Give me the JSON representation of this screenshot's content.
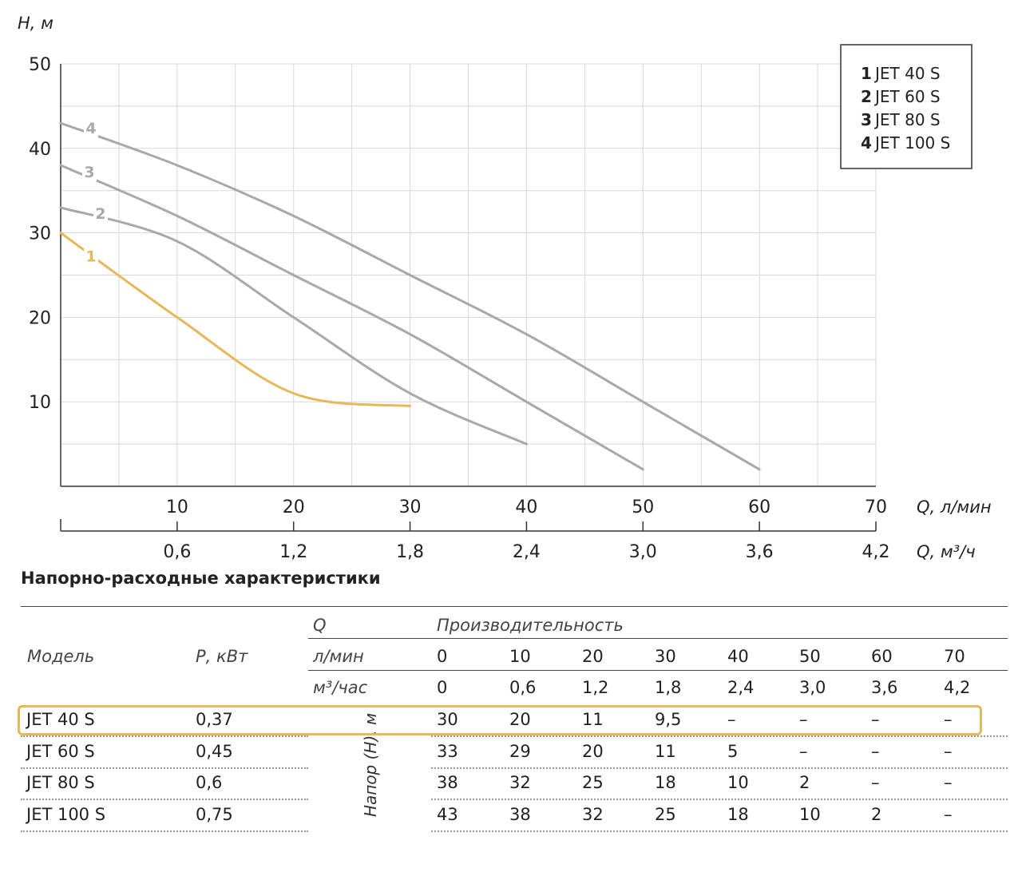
{
  "chart_data": {
    "type": "line",
    "ylabel": "H, м",
    "xlabel": "Q, л/мин",
    "x2label": "Q, м³/ч",
    "xlim": [
      0,
      70
    ],
    "ylim": [
      0,
      50
    ],
    "y_ticks": [
      10,
      20,
      30,
      40,
      50
    ],
    "x_ticks": [
      10,
      20,
      30,
      40,
      50,
      60,
      70
    ],
    "x2_ticks": [
      "0,6",
      "1,2",
      "1,8",
      "2,4",
      "3,0",
      "3,6",
      "4,2"
    ],
    "grid": true,
    "legend_position": "top-right",
    "series": [
      {
        "id": "1",
        "name": "JET 40 S",
        "color": "#e8b75a",
        "x": [
          0,
          10,
          20,
          30
        ],
        "y": [
          30,
          20,
          11,
          9.5
        ]
      },
      {
        "id": "2",
        "name": "JET 60 S",
        "color": "#a8a8a8",
        "x": [
          0,
          10,
          20,
          30,
          40
        ],
        "y": [
          33,
          29,
          20,
          11,
          5
        ]
      },
      {
        "id": "3",
        "name": "JET 80 S",
        "color": "#a8a8a8",
        "x": [
          0,
          10,
          20,
          30,
          40,
          50
        ],
        "y": [
          38,
          32,
          25,
          18,
          10,
          2
        ]
      },
      {
        "id": "4",
        "name": "JET 100 S",
        "color": "#a8a8a8",
        "x": [
          0,
          10,
          20,
          30,
          40,
          50,
          60
        ],
        "y": [
          43,
          38,
          32,
          25,
          18,
          10,
          2
        ]
      }
    ]
  },
  "table": {
    "title": "Напорно-расходные характеристики",
    "header_q": "Q",
    "header_perf": "Производительность",
    "header_model": "Модель",
    "header_power": "Р, кВт",
    "unit_lmin": "л/мин",
    "unit_m3h": "м³/час",
    "lmin_values": [
      "0",
      "10",
      "20",
      "30",
      "40",
      "50",
      "60",
      "70"
    ],
    "m3h_values": [
      "0",
      "0,6",
      "1,2",
      "1,8",
      "2,4",
      "3,0",
      "3,6",
      "4,2"
    ],
    "head_label": "Напор (Н), м",
    "highlight_color": "#e8b75a",
    "rows": [
      {
        "model": "JET 40 S",
        "power": "0,37",
        "values": [
          "30",
          "20",
          "11",
          "9,5",
          "–",
          "–",
          "–",
          "–"
        ]
      },
      {
        "model": "JET 60 S",
        "power": "0,45",
        "values": [
          "33",
          "29",
          "20",
          "11",
          "5",
          "–",
          "–",
          "–"
        ]
      },
      {
        "model": "JET 80 S",
        "power": "0,6",
        "values": [
          "38",
          "32",
          "25",
          "18",
          "10",
          "2",
          "–",
          "–"
        ]
      },
      {
        "model": "JET 100 S",
        "power": "0,75",
        "values": [
          "43",
          "38",
          "32",
          "25",
          "18",
          "10",
          "2",
          "–"
        ]
      }
    ]
  }
}
